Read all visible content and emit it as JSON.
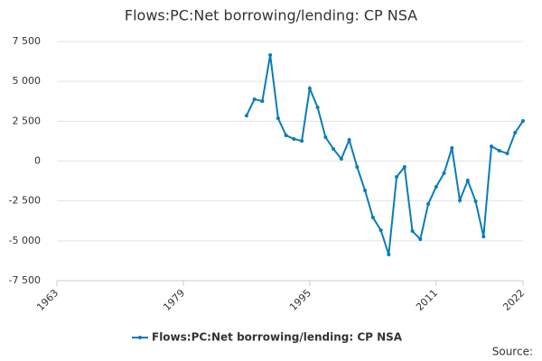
{
  "chart_data": {
    "type": "line",
    "title": "Flows:PC:Net borrowing/lending: CP NSA",
    "x": [
      1987,
      1988,
      1989,
      1990,
      1991,
      1992,
      1993,
      1994,
      1995,
      1996,
      1997,
      1998,
      1999,
      2000,
      2001,
      2002,
      2003,
      2004,
      2005,
      2006,
      2007,
      2008,
      2009,
      2010,
      2011,
      2012,
      2013,
      2014,
      2015,
      2016,
      2017,
      2018,
      2019,
      2020,
      2021,
      2022
    ],
    "series": [
      {
        "name": "Flows:PC:Net borrowing/lending: CP NSA",
        "color": "#0b7cb8",
        "values": [
          2850,
          3880,
          3760,
          6650,
          2690,
          1610,
          1390,
          1270,
          4560,
          3370,
          1500,
          760,
          140,
          1330,
          -370,
          -1840,
          -3540,
          -4330,
          -5860,
          -990,
          -370,
          -4390,
          -4900,
          -2690,
          -1610,
          -760,
          820,
          -2460,
          -1220,
          -2520,
          -4730,
          930,
          650,
          480,
          1780,
          2520
        ]
      }
    ],
    "xlim": [
      1963,
      2022
    ],
    "xticks": [
      1963,
      1979,
      1995,
      2011,
      2022
    ],
    "ylim": [
      -7500,
      7500
    ],
    "yticks": [
      {
        "value": -7500,
        "label": "-7 500"
      },
      {
        "value": -5000,
        "label": "-5 000"
      },
      {
        "value": -2500,
        "label": "-2 500"
      },
      0,
      {
        "value": 2500,
        "label": "2 500"
      },
      {
        "value": 5000,
        "label": "5 000"
      },
      {
        "value": 7500,
        "label": "7 500"
      }
    ],
    "grid": true,
    "source": "Source:"
  }
}
